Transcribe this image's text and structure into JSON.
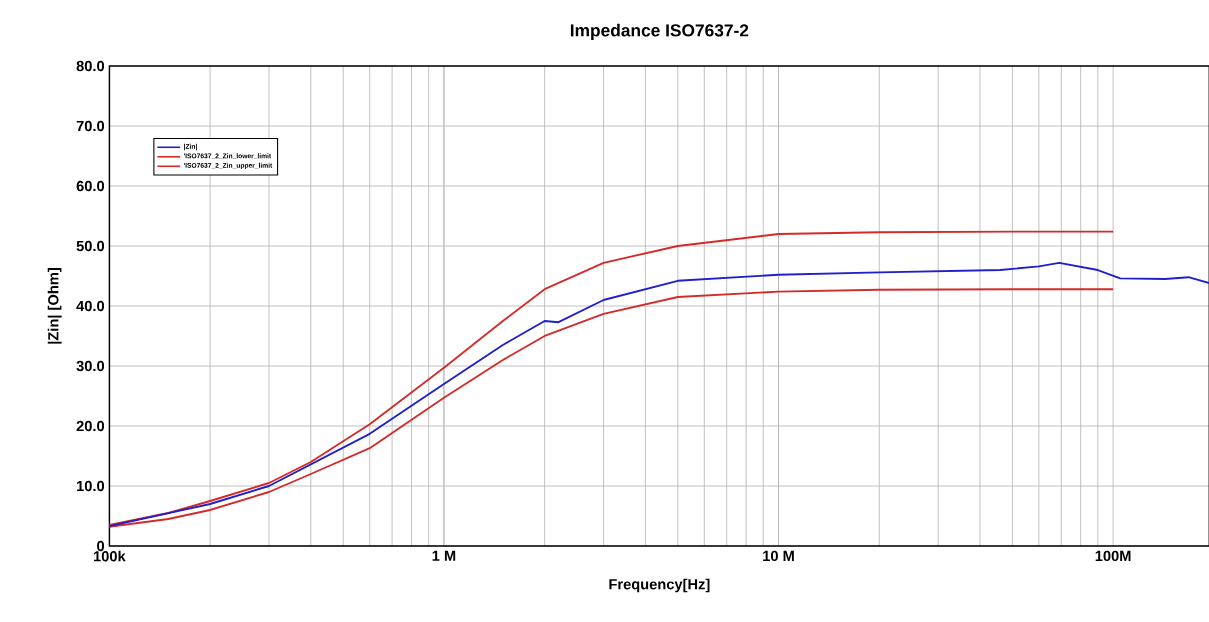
{
  "chart_data": {
    "type": "line",
    "title": "Impedance ISO7637-2",
    "xlabel": "Frequency[Hz]",
    "ylabel": "|Zin| [Ohm]",
    "log": "x",
    "grid": true,
    "legend": "top left",
    "line_style": "solid",
    "marker": "none",
    "xlim": [
      100000,
      194000000
    ],
    "xticks": [
      {
        "value": 100000,
        "label": "100k"
      },
      {
        "value": 1000000,
        "label": "1 M"
      },
      {
        "value": 10000000,
        "label": "10 M"
      },
      {
        "value": 100000000,
        "label": "100M"
      }
    ],
    "ylim": [
      0,
      80
    ],
    "yticks": [
      0,
      {
        "value": 10,
        "label": "10.0"
      },
      {
        "value": 20,
        "label": "20.0"
      },
      {
        "value": 30,
        "label": "30.0"
      },
      {
        "value": 40,
        "label": "40.0"
      },
      {
        "value": 50,
        "label": "50.0"
      },
      {
        "value": 60,
        "label": "60.0"
      },
      {
        "value": 70,
        "label": "70.0"
      },
      {
        "value": 80,
        "label": "80.0"
      }
    ],
    "series": [
      {
        "name": "|Zin|",
        "color": "#1f1fcc",
        "x": [
          100000,
          200000,
          300000,
          600000,
          1000000,
          1500000,
          2000000,
          2200000,
          3000000,
          5000000,
          10000000,
          20000000,
          46000000,
          60000000,
          69000000,
          90000000,
          105000000,
          143000000,
          168000000,
          194000000
        ],
        "values": [
          3.3,
          7,
          10,
          18.7,
          27,
          33.5,
          37.5,
          37.3,
          41,
          44.2,
          45.2,
          45.6,
          46,
          46.6,
          47.2,
          46,
          44.6,
          44.5,
          44.8,
          43.8
        ]
      },
      {
        "name": "'ISO7637_2_Zin_lower_limit",
        "color": "#d42a2a",
        "x": [
          100000,
          150000,
          200000,
          300000,
          400000,
          600000,
          1000000,
          1500000,
          2000000,
          3000000,
          5000000,
          10000000,
          20000000,
          50000000,
          100000000
        ],
        "values": [
          3.2,
          4.5,
          6,
          9,
          12,
          16.3,
          24.7,
          31,
          35,
          38.7,
          41.5,
          42.4,
          42.7,
          42.8,
          42.8
        ]
      },
      {
        "name": "'ISO7637_2_Zin_upper_limit",
        "color": "#d42a2a",
        "x": [
          100000,
          150000,
          200000,
          300000,
          400000,
          600000,
          1000000,
          1500000,
          2000000,
          3000000,
          5000000,
          10000000,
          20000000,
          50000000,
          100000000
        ],
        "values": [
          3.5,
          5.5,
          7.5,
          10.5,
          14,
          20.3,
          29.7,
          37.5,
          42.8,
          47.2,
          50,
          52,
          52.3,
          52.4,
          52.4
        ]
      }
    ]
  }
}
